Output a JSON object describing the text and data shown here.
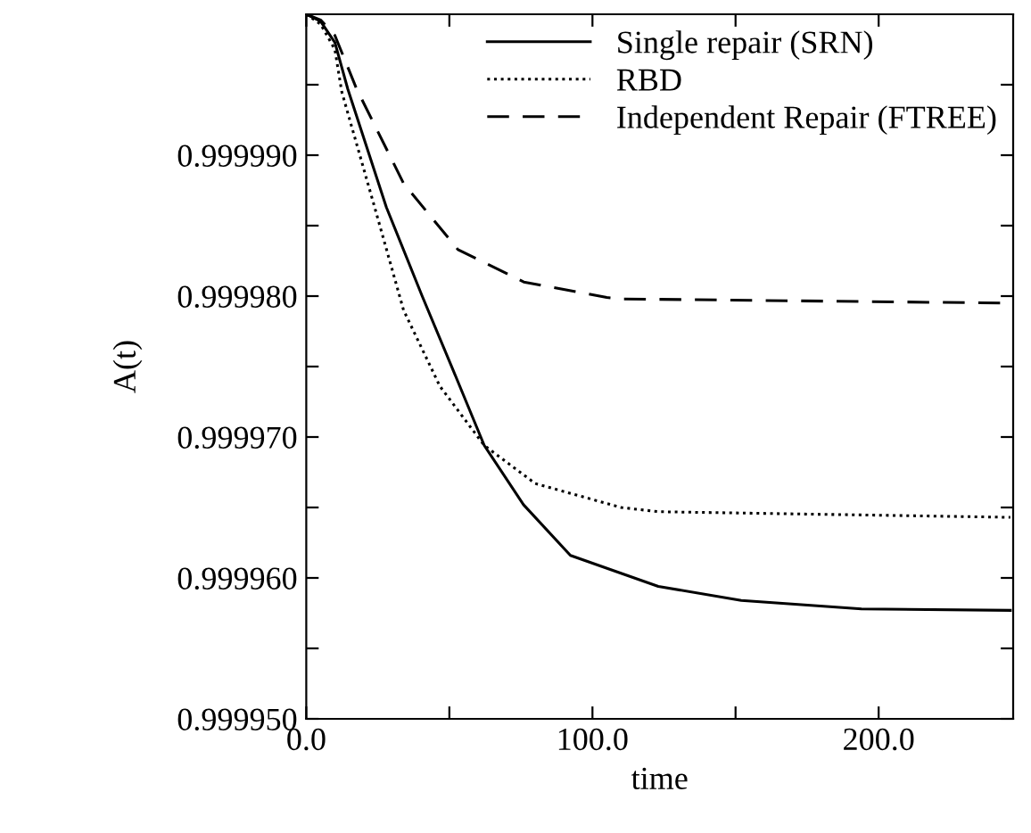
{
  "chart_data": {
    "type": "line",
    "xlabel": "time",
    "ylabel": "A(t)",
    "xlim": [
      0,
      247
    ],
    "ylim": [
      0.99995,
      1.0
    ],
    "xticks": [
      {
        "value": 0,
        "label": "0.0"
      },
      {
        "value": 50,
        "label": null
      },
      {
        "value": 100,
        "label": "100.0"
      },
      {
        "value": 150,
        "label": null
      },
      {
        "value": 200,
        "label": "200.0"
      }
    ],
    "yticks": [
      {
        "value": 0.99995,
        "label": "0.999950"
      },
      {
        "value": 0.999955,
        "label": null
      },
      {
        "value": 0.99996,
        "label": "0.999960"
      },
      {
        "value": 0.999965,
        "label": null
      },
      {
        "value": 0.99997,
        "label": "0.999970"
      },
      {
        "value": 0.999975,
        "label": null
      },
      {
        "value": 0.99998,
        "label": "0.999980"
      },
      {
        "value": 0.999985,
        "label": null
      },
      {
        "value": 0.99999,
        "label": "0.999990"
      },
      {
        "value": 0.999995,
        "label": null
      }
    ],
    "grid": false,
    "legend": "top right",
    "marker": "none",
    "series": [
      {
        "name": "Single repair (SRN)",
        "color": "#000000",
        "line_style": "solid",
        "x": [
          0,
          5,
          10,
          14.5,
          28,
          40.5,
          51,
          62.2,
          75.9,
          92.3,
          110.4,
          123,
          152,
          194,
          246
        ],
        "values": [
          1.0,
          0.9999995,
          0.999998,
          0.9999947,
          0.9999863,
          0.99998,
          0.9999749,
          0.9999694,
          0.9999652,
          0.9999616,
          0.9999603,
          0.9999594,
          0.9999584,
          0.9999578,
          0.9999577
        ]
      },
      {
        "name": "RBD",
        "color": "#000000",
        "line_style": "dotted",
        "x": [
          0,
          5,
          10,
          12.4,
          23.9,
          34,
          46.7,
          62.2,
          80,
          110,
          123,
          246
        ],
        "values": [
          1.0,
          0.9999993,
          0.9999975,
          0.9999945,
          0.9999863,
          0.999979,
          0.9999736,
          0.9999694,
          0.9999667,
          0.999965,
          0.9999647,
          0.9999643
        ]
      },
      {
        "name": "Independent Repair (FTREE)",
        "color": "#000000",
        "line_style": "dashed",
        "x": [
          0,
          5,
          10,
          17.6,
          34,
          53,
          76,
          105,
          110,
          246
        ],
        "values": [
          1.0,
          0.9999996,
          0.9999985,
          0.9999947,
          0.999988,
          0.9999833,
          0.999981,
          0.9999799,
          0.9999798,
          0.9999795
        ]
      }
    ]
  }
}
